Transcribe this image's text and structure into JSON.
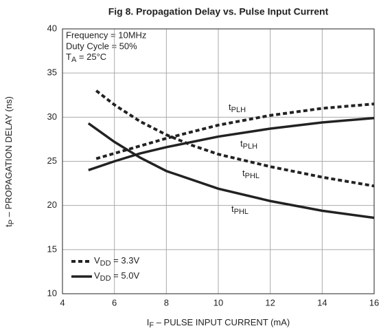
{
  "chart_data": {
    "type": "line",
    "title": "Fig 8. Propagation Delay vs. Pulse Input Current",
    "x_label": "IF – PULSE INPUT CURRENT (mA)",
    "y_label": "tP – PROPAGATION DELAY (ns)",
    "annotations": [
      "Frequency = 10MHz",
      "Duty Cycle = 50%",
      "TA = 25°C"
    ],
    "xlim": [
      4,
      16
    ],
    "xticks": [
      4,
      6,
      8,
      10,
      12,
      14,
      16
    ],
    "ylim": [
      10,
      40
    ],
    "yticks": [
      10,
      15,
      20,
      25,
      30,
      35,
      40
    ],
    "grid": true,
    "legend": [
      {
        "label": "VDD = 3.3V",
        "dashed": true
      },
      {
        "label": "VDD = 5.0V",
        "dashed": false
      }
    ],
    "series": [
      {
        "name": "tPLH",
        "color": "#222222",
        "dashed": true,
        "x": [
          5.3,
          6,
          8,
          10,
          12,
          14,
          16
        ],
        "values": [
          25.3,
          25.9,
          27.6,
          29.1,
          30.2,
          31.0,
          31.5
        ]
      },
      {
        "name": "tPLH",
        "color": "#222222",
        "dashed": false,
        "x": [
          5,
          6,
          7,
          8,
          10,
          12,
          14,
          16
        ],
        "values": [
          24,
          25,
          25.9,
          26.6,
          27.8,
          28.7,
          29.4,
          29.9
        ]
      },
      {
        "name": "tPHL",
        "color": "#222222",
        "dashed": true,
        "x": [
          5.3,
          6,
          7,
          8,
          9,
          10,
          12,
          14,
          16
        ],
        "values": [
          33,
          31.4,
          29.5,
          28,
          26.8,
          25.8,
          24.4,
          23.2,
          22.2
        ]
      },
      {
        "name": "tPHL",
        "color": "#222222",
        "dashed": false,
        "x": [
          5,
          6,
          7,
          8,
          10,
          12,
          14,
          16
        ],
        "values": [
          29.3,
          27.2,
          25.4,
          23.9,
          21.9,
          20.5,
          19.4,
          18.6
        ]
      }
    ]
  }
}
